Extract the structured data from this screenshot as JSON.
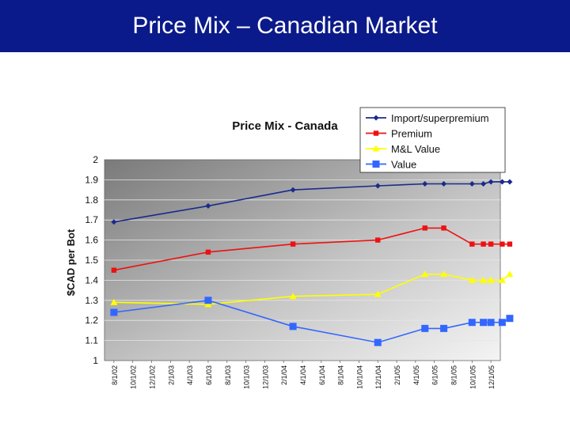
{
  "slide": {
    "title": "Price Mix – Canadian Market",
    "header_color": "#0b1a8a"
  },
  "chart_data": {
    "type": "line",
    "title": "Price Mix - Canada",
    "xlabel": "",
    "ylabel": "$CAD per Bot",
    "ylim": [
      1,
      2
    ],
    "yticks": [
      "1",
      "1.1",
      "1.2",
      "1.3",
      "1.4",
      "1.5",
      "1.6",
      "1.7",
      "1.8",
      "1.9",
      "2"
    ],
    "xticks": [
      "8/1/02",
      "10/1/02",
      "12/1/02",
      "2/1/03",
      "4/1/03",
      "6/1/03",
      "8/1/03",
      "10/1/03",
      "12/1/03",
      "2/1/04",
      "4/1/04",
      "6/1/04",
      "8/1/04",
      "10/1/04",
      "12/1/04",
      "2/1/05",
      "4/1/05",
      "6/1/05",
      "8/1/05",
      "10/1/05",
      "12/1/05"
    ],
    "legend_position": "top-right",
    "series": [
      {
        "name": "Import/superpremium",
        "color": "#1a2a8c",
        "marker": "diamond",
        "points": [
          [
            0,
            1.69
          ],
          [
            5,
            1.77
          ],
          [
            9.5,
            1.85
          ],
          [
            14,
            1.87
          ],
          [
            16.5,
            1.88
          ],
          [
            17.5,
            1.88
          ],
          [
            19,
            1.88
          ],
          [
            19.6,
            1.88
          ],
          [
            20,
            1.89
          ],
          [
            20.6,
            1.89
          ],
          [
            21,
            1.89
          ]
        ]
      },
      {
        "name": "Premium",
        "color": "#ee1111",
        "marker": "square",
        "points": [
          [
            0,
            1.45
          ],
          [
            5,
            1.54
          ],
          [
            9.5,
            1.58
          ],
          [
            14,
            1.6
          ],
          [
            16.5,
            1.66
          ],
          [
            17.5,
            1.66
          ],
          [
            19,
            1.58
          ],
          [
            19.6,
            1.58
          ],
          [
            20,
            1.58
          ],
          [
            20.6,
            1.58
          ],
          [
            21,
            1.58
          ]
        ]
      },
      {
        "name": "M&L Value",
        "color": "#ffff00",
        "marker": "triangle",
        "points": [
          [
            0,
            1.29
          ],
          [
            5,
            1.28
          ],
          [
            9.5,
            1.32
          ],
          [
            14,
            1.33
          ],
          [
            16.5,
            1.43
          ],
          [
            17.5,
            1.43
          ],
          [
            19,
            1.4
          ],
          [
            19.6,
            1.4
          ],
          [
            20,
            1.4
          ],
          [
            20.6,
            1.4
          ],
          [
            21,
            1.43
          ]
        ]
      },
      {
        "name": "Value",
        "color": "#3366ff",
        "marker": "square",
        "points": [
          [
            0,
            1.24
          ],
          [
            5,
            1.3
          ],
          [
            9.5,
            1.17
          ],
          [
            14,
            1.09
          ],
          [
            16.5,
            1.16
          ],
          [
            17.5,
            1.16
          ],
          [
            19,
            1.19
          ],
          [
            19.6,
            1.19
          ],
          [
            20,
            1.19
          ],
          [
            20.6,
            1.19
          ],
          [
            21,
            1.21
          ]
        ]
      }
    ]
  }
}
